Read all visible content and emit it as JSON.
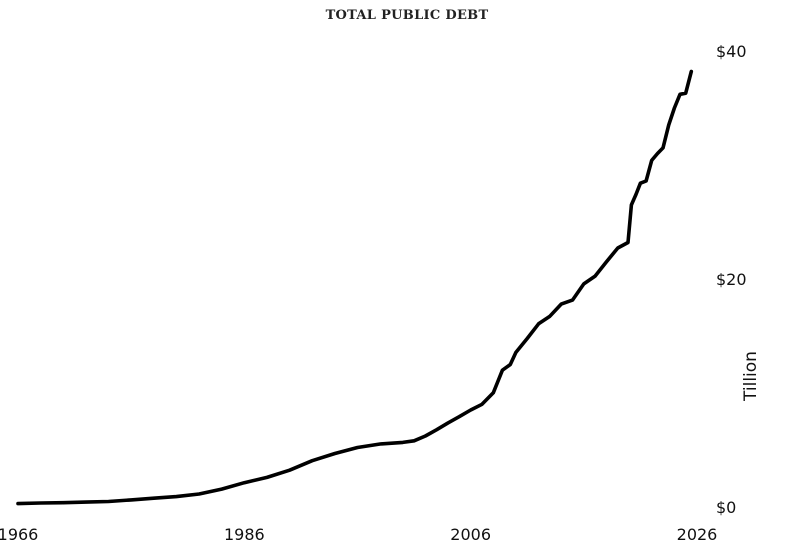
{
  "chart_data": {
    "type": "line",
    "title": "TOTAL PUBLIC DEBT",
    "ylabel": "Tillion",
    "xlabel": "",
    "xlim": [
      1966,
      2026
    ],
    "ylim": [
      0,
      40
    ],
    "x_ticks": [
      1966,
      1986,
      2006,
      2026
    ],
    "x_tick_labels": [
      "1966",
      "1986",
      "2006",
      "2026"
    ],
    "y_ticks": [
      0,
      20,
      40
    ],
    "y_tick_labels": [
      "$0",
      "$20",
      "$40"
    ],
    "y_axis_position": "right",
    "grid": false,
    "legend": "none",
    "line_color": "#000000",
    "series": [
      {
        "x": [
          1966,
          1968,
          1970,
          1972,
          1974,
          1976,
          1978,
          1980,
          1982,
          1984,
          1986,
          1988,
          1990,
          1992,
          1994,
          1996,
          1998,
          2000,
          2001,
          2002,
          2003,
          2004,
          2005,
          2006,
          2007,
          2008,
          2008.8,
          2009.5,
          2010,
          2011,
          2012,
          2013,
          2014,
          2015,
          2016,
          2017,
          2018,
          2019,
          2019.9,
          2020.2,
          2020.6,
          2021,
          2021.5,
          2022,
          2022.5,
          2023,
          2023.5,
          2024,
          2024.5,
          2025,
          2025.5
        ],
        "y": [
          0.3,
          0.35,
          0.38,
          0.43,
          0.48,
          0.62,
          0.77,
          0.91,
          1.14,
          1.57,
          2.13,
          2.6,
          3.23,
          4.06,
          4.69,
          5.22,
          5.53,
          5.67,
          5.81,
          6.23,
          6.78,
          7.38,
          7.93,
          8.51,
          9.01,
          10.02,
          12.0,
          12.5,
          13.56,
          14.79,
          16.07,
          16.74,
          17.8,
          18.15,
          19.57,
          20.25,
          21.52,
          22.72,
          23.2,
          26.5,
          27.4,
          28.4,
          28.6,
          30.4,
          31.0,
          31.5,
          33.5,
          35.0,
          36.2,
          36.3,
          38.2
        ]
      }
    ]
  }
}
